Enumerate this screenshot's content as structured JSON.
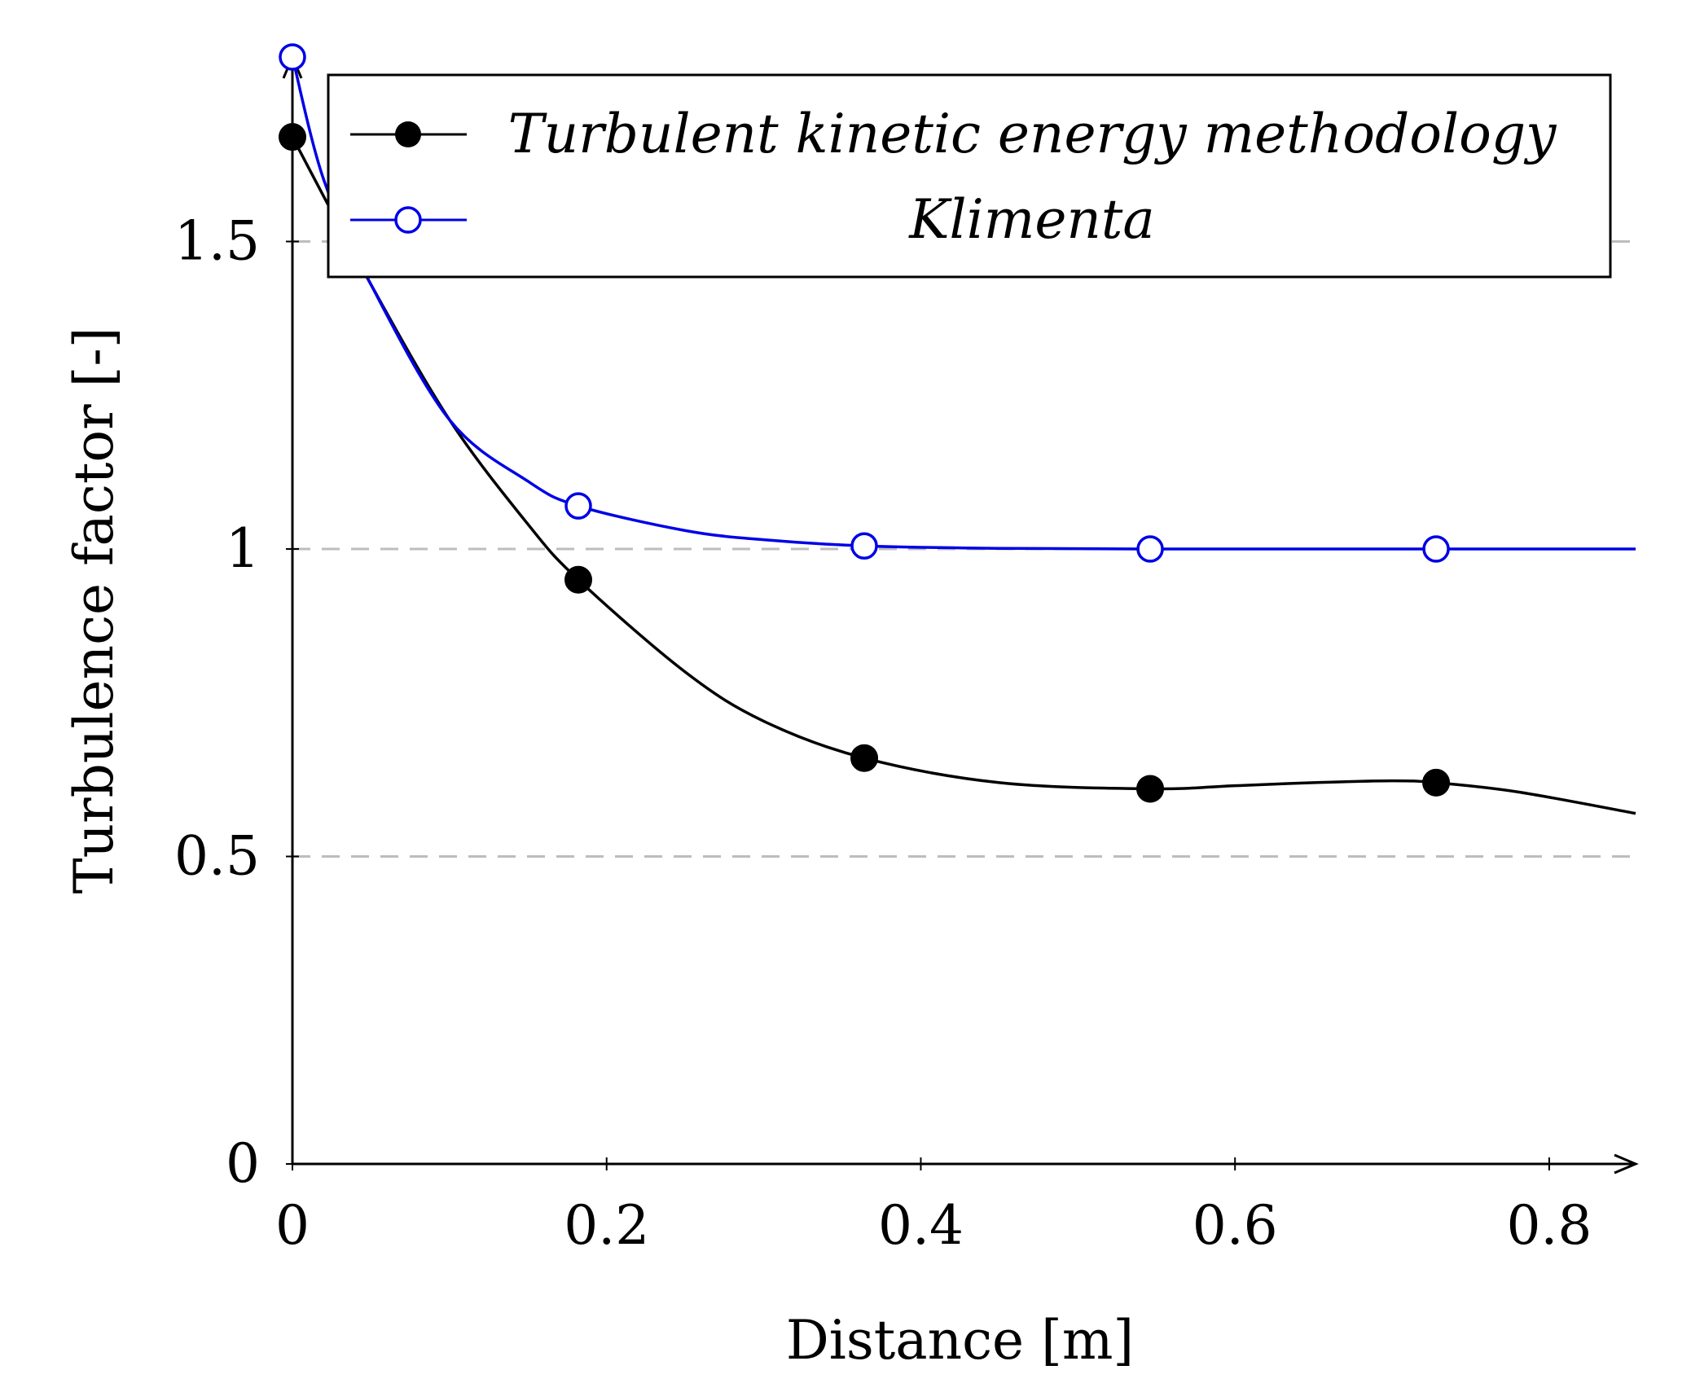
{
  "chart_data": {
    "type": "line",
    "xlabel": "Distance [m]",
    "ylabel": "Turbulence factor [-]",
    "xlim": [
      0,
      0.855
    ],
    "ylim": [
      0,
      1.8
    ],
    "xticks": [
      "0",
      "0.2",
      "0.4",
      "0.6",
      "0.8"
    ],
    "xtick_values": [
      0,
      0.2,
      0.4,
      0.6,
      0.8
    ],
    "yticks": [
      "0",
      "0.5",
      "1",
      "1.5"
    ],
    "ytick_values": [
      0,
      0.5,
      1,
      1.5
    ],
    "grid": "horizontal dashed at y ticks",
    "legend_position": "top",
    "series": [
      {
        "name": "Turbulent kinetic energy methodology",
        "color": "#000000",
        "marker": "filled-circle",
        "x": [
          0,
          0.182,
          0.364,
          0.546,
          0.728
        ],
        "values": [
          1.67,
          0.95,
          0.66,
          0.61,
          0.62
        ],
        "curve_x": [
          0,
          0.05,
          0.1,
          0.15,
          0.182,
          0.25,
          0.3,
          0.364,
          0.45,
          0.546,
          0.6,
          0.65,
          0.7,
          0.728,
          0.78,
          0.855
        ],
        "curve_y": [
          1.67,
          1.43,
          1.21,
          1.04,
          0.95,
          0.8,
          0.72,
          0.66,
          0.62,
          0.61,
          0.615,
          0.62,
          0.623,
          0.62,
          0.605,
          0.57
        ]
      },
      {
        "name": "Klimenta",
        "color": "#0000e6",
        "marker": "open-circle",
        "x": [
          0,
          0.182,
          0.364,
          0.546,
          0.728
        ],
        "values": [
          1.8,
          1.07,
          1.005,
          1.0,
          1.0
        ],
        "curve_x": [
          0,
          0.02,
          0.05,
          0.1,
          0.15,
          0.182,
          0.25,
          0.3,
          0.364,
          0.45,
          0.546,
          0.65,
          0.728,
          0.855
        ],
        "curve_y": [
          1.8,
          1.6,
          1.43,
          1.21,
          1.11,
          1.07,
          1.03,
          1.015,
          1.005,
          1.001,
          1.0,
          1.0,
          1.0,
          1.0
        ]
      }
    ]
  }
}
